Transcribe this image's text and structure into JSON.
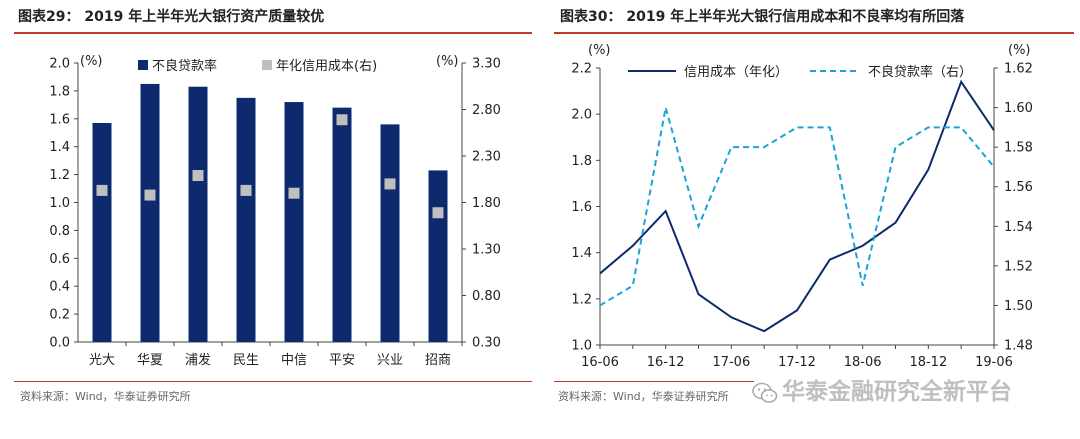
{
  "colors": {
    "navy": "#0d2a6e",
    "cyan": "#1aa3d9",
    "gray_marker": "#bfbfbf",
    "rule_red": "#c0392b"
  },
  "left": {
    "title": "图表29：  2019 年上半年光大银行资产质量较优",
    "source": "资料来源：Wind，华泰证券研究所"
  },
  "right": {
    "title": "图表30：  2019 年上半年光大银行信用成本和不良率均有所回落",
    "source": "资料来源：Wind，华泰证券研究所"
  },
  "watermark": "华泰金融研究全新平台",
  "chart_data": [
    {
      "type": "bar",
      "categories": [
        "光大",
        "华夏",
        "浦发",
        "民生",
        "中信",
        "平安",
        "兴业",
        "招商"
      ],
      "series": [
        {
          "name": "不良贷款率",
          "axis": "left",
          "values": [
            1.57,
            1.85,
            1.83,
            1.75,
            1.72,
            1.68,
            1.56,
            1.23
          ]
        },
        {
          "name": "年化信用成本(右)",
          "axis": "right",
          "values": [
            1.93,
            1.88,
            2.09,
            1.93,
            1.9,
            2.69,
            2.0,
            1.69
          ]
        }
      ],
      "y_left": {
        "unit": "(%)",
        "ylim": [
          0,
          2.0
        ],
        "ticks": [
          "0.0",
          "0.2",
          "0.4",
          "0.6",
          "0.8",
          "1.0",
          "1.2",
          "1.4",
          "1.6",
          "1.8",
          "2.0"
        ]
      },
      "y_right": {
        "unit": "(%)",
        "ylim": [
          0.3,
          3.3
        ],
        "ticks": [
          "0.30",
          "0.80",
          "1.30",
          "1.80",
          "2.30",
          "2.80",
          "3.30"
        ]
      },
      "legend": "top"
    },
    {
      "type": "line",
      "x": [
        "16-06",
        "16-09",
        "16-12",
        "17-03",
        "17-06",
        "17-09",
        "17-12",
        "18-03",
        "18-06",
        "18-09",
        "18-12",
        "19-03",
        "19-06"
      ],
      "x_tick_labels": [
        "16-06",
        "16-12",
        "17-06",
        "17-12",
        "18-06",
        "18-12",
        "19-06"
      ],
      "series": [
        {
          "name": "信用成本（年化）",
          "axis": "left",
          "style": "solid",
          "values": [
            1.31,
            1.43,
            1.58,
            1.22,
            1.12,
            1.06,
            1.15,
            1.37,
            1.43,
            1.53,
            1.76,
            2.14,
            1.93
          ]
        },
        {
          "name": "不良贷款率（右）",
          "axis": "right",
          "style": "dashed",
          "values": [
            1.5,
            1.51,
            1.6,
            1.54,
            1.58,
            1.58,
            1.59,
            1.59,
            1.51,
            1.58,
            1.59,
            1.59,
            1.57
          ]
        }
      ],
      "y_left": {
        "unit": "(%)",
        "ylim": [
          1.0,
          2.2
        ],
        "ticks": [
          "1.0",
          "1.2",
          "1.4",
          "1.6",
          "1.8",
          "2.0",
          "2.2"
        ]
      },
      "y_right": {
        "unit": "(%)",
        "ylim": [
          1.48,
          1.62
        ],
        "ticks": [
          "1.48",
          "1.50",
          "1.52",
          "1.54",
          "1.56",
          "1.58",
          "1.60",
          "1.62"
        ]
      },
      "legend": "top"
    }
  ]
}
